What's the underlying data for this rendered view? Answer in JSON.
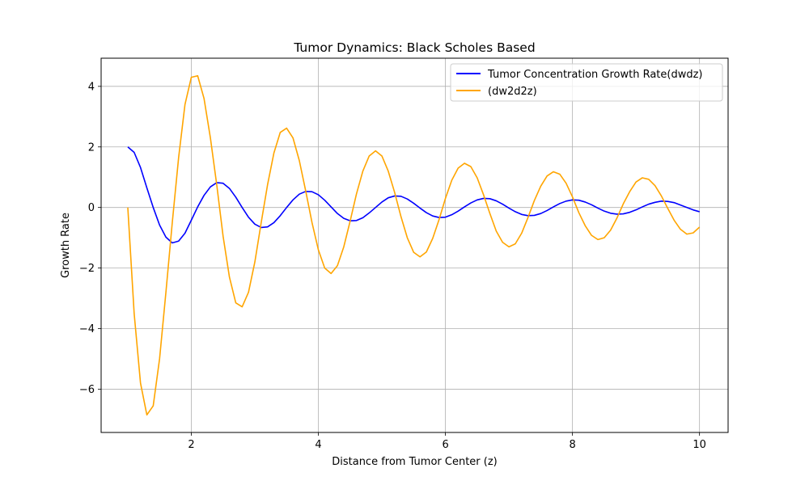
{
  "chart_data": {
    "type": "line",
    "title": "Tumor Dynamics: Black Scholes Based",
    "xlabel": "Distance from Tumor Center (z)",
    "ylabel": "Growth Rate",
    "xlim": [
      0.58,
      10.45
    ],
    "ylim": [
      -7.43,
      4.93
    ],
    "xticks": [
      2,
      4,
      6,
      8,
      10
    ],
    "xtick_labels": [
      "2",
      "4",
      "6",
      "8",
      "10"
    ],
    "yticks": [
      -6,
      -4,
      -2,
      0,
      2,
      4
    ],
    "ytick_labels": [
      "−6",
      "−4",
      "−2",
      "0",
      "2",
      "4"
    ],
    "grid": true,
    "legend_position": "top-right",
    "series": [
      {
        "name": "Tumor Concentration Growth Rate(dwdz)",
        "color": "#0000ff",
        "points": [
          [
            1.0,
            2.0
          ],
          [
            1.1,
            1.82
          ],
          [
            1.2,
            1.32
          ],
          [
            1.3,
            0.65
          ],
          [
            1.4,
            0.0
          ],
          [
            1.5,
            -0.58
          ],
          [
            1.6,
            -0.98
          ],
          [
            1.7,
            -1.17
          ],
          [
            1.8,
            -1.11
          ],
          [
            1.9,
            -0.85
          ],
          [
            2.0,
            -0.42
          ],
          [
            2.1,
            0.02
          ],
          [
            2.2,
            0.4
          ],
          [
            2.3,
            0.68
          ],
          [
            2.4,
            0.82
          ],
          [
            2.5,
            0.8
          ],
          [
            2.6,
            0.63
          ],
          [
            2.7,
            0.34
          ],
          [
            2.8,
            0.0
          ],
          [
            2.9,
            -0.32
          ],
          [
            3.0,
            -0.55
          ],
          [
            3.1,
            -0.66
          ],
          [
            3.2,
            -0.64
          ],
          [
            3.3,
            -0.5
          ],
          [
            3.4,
            -0.27
          ],
          [
            3.5,
            0.0
          ],
          [
            3.6,
            0.25
          ],
          [
            3.7,
            0.44
          ],
          [
            3.8,
            0.53
          ],
          [
            3.9,
            0.52
          ],
          [
            4.0,
            0.42
          ],
          [
            4.1,
            0.24
          ],
          [
            4.2,
            0.02
          ],
          [
            4.3,
            -0.2
          ],
          [
            4.4,
            -0.36
          ],
          [
            4.5,
            -0.44
          ],
          [
            4.6,
            -0.43
          ],
          [
            4.7,
            -0.34
          ],
          [
            4.8,
            -0.18
          ],
          [
            4.9,
            0.0
          ],
          [
            5.0,
            0.18
          ],
          [
            5.1,
            0.32
          ],
          [
            5.2,
            0.38
          ],
          [
            5.3,
            0.37
          ],
          [
            5.4,
            0.28
          ],
          [
            5.5,
            0.14
          ],
          [
            5.6,
            -0.02
          ],
          [
            5.7,
            -0.17
          ],
          [
            5.8,
            -0.28
          ],
          [
            5.9,
            -0.33
          ],
          [
            6.0,
            -0.32
          ],
          [
            6.1,
            -0.24
          ],
          [
            6.2,
            -0.12
          ],
          [
            6.3,
            0.02
          ],
          [
            6.4,
            0.15
          ],
          [
            6.5,
            0.25
          ],
          [
            6.6,
            0.3
          ],
          [
            6.7,
            0.29
          ],
          [
            6.8,
            0.22
          ],
          [
            6.9,
            0.11
          ],
          [
            7.0,
            -0.02
          ],
          [
            7.1,
            -0.14
          ],
          [
            7.2,
            -0.23
          ],
          [
            7.3,
            -0.27
          ],
          [
            7.4,
            -0.26
          ],
          [
            7.5,
            -0.2
          ],
          [
            7.6,
            -0.1
          ],
          [
            7.7,
            0.02
          ],
          [
            7.8,
            0.13
          ],
          [
            7.9,
            0.21
          ],
          [
            8.0,
            0.25
          ],
          [
            8.1,
            0.24
          ],
          [
            8.2,
            0.18
          ],
          [
            8.3,
            0.09
          ],
          [
            8.4,
            -0.02
          ],
          [
            8.5,
            -0.12
          ],
          [
            8.6,
            -0.19
          ],
          [
            8.7,
            -0.22
          ],
          [
            8.8,
            -0.21
          ],
          [
            8.9,
            -0.16
          ],
          [
            9.0,
            -0.08
          ],
          [
            9.1,
            0.02
          ],
          [
            9.2,
            0.11
          ],
          [
            9.3,
            0.17
          ],
          [
            9.4,
            0.21
          ],
          [
            9.5,
            0.2
          ],
          [
            9.6,
            0.16
          ],
          [
            9.7,
            0.08
          ],
          [
            9.8,
            0.0
          ],
          [
            9.9,
            -0.08
          ],
          [
            10.0,
            -0.14
          ]
        ]
      },
      {
        "name": "(dw2d2z)",
        "color": "#ffa500",
        "points": [
          [
            1.0,
            0.0
          ],
          [
            1.1,
            -3.5
          ],
          [
            1.2,
            -5.8
          ],
          [
            1.3,
            -6.85
          ],
          [
            1.4,
            -6.55
          ],
          [
            1.5,
            -5.0
          ],
          [
            1.6,
            -2.8
          ],
          [
            1.7,
            -0.5
          ],
          [
            1.8,
            1.65
          ],
          [
            1.9,
            3.4
          ],
          [
            2.0,
            4.3
          ],
          [
            2.1,
            4.35
          ],
          [
            2.2,
            3.6
          ],
          [
            2.3,
            2.3
          ],
          [
            2.4,
            0.75
          ],
          [
            2.5,
            -0.95
          ],
          [
            2.6,
            -2.3
          ],
          [
            2.7,
            -3.15
          ],
          [
            2.8,
            -3.28
          ],
          [
            2.9,
            -2.8
          ],
          [
            3.0,
            -1.8
          ],
          [
            3.1,
            -0.5
          ],
          [
            3.2,
            0.75
          ],
          [
            3.3,
            1.8
          ],
          [
            3.4,
            2.48
          ],
          [
            3.5,
            2.62
          ],
          [
            3.6,
            2.3
          ],
          [
            3.7,
            1.55
          ],
          [
            3.8,
            0.55
          ],
          [
            3.9,
            -0.5
          ],
          [
            4.0,
            -1.4
          ],
          [
            4.1,
            -2.0
          ],
          [
            4.2,
            -2.18
          ],
          [
            4.3,
            -1.92
          ],
          [
            4.4,
            -1.3
          ],
          [
            4.5,
            -0.45
          ],
          [
            4.6,
            0.45
          ],
          [
            4.7,
            1.2
          ],
          [
            4.8,
            1.7
          ],
          [
            4.9,
            1.87
          ],
          [
            5.0,
            1.7
          ],
          [
            5.1,
            1.2
          ],
          [
            5.2,
            0.5
          ],
          [
            5.3,
            -0.3
          ],
          [
            5.4,
            -1.0
          ],
          [
            5.5,
            -1.48
          ],
          [
            5.6,
            -1.63
          ],
          [
            5.7,
            -1.47
          ],
          [
            5.8,
            -1.02
          ],
          [
            5.9,
            -0.4
          ],
          [
            6.0,
            0.3
          ],
          [
            6.1,
            0.9
          ],
          [
            6.2,
            1.3
          ],
          [
            6.3,
            1.46
          ],
          [
            6.4,
            1.35
          ],
          [
            6.5,
            0.98
          ],
          [
            6.6,
            0.42
          ],
          [
            6.7,
            -0.2
          ],
          [
            6.8,
            -0.78
          ],
          [
            6.9,
            -1.15
          ],
          [
            7.0,
            -1.3
          ],
          [
            7.1,
            -1.2
          ],
          [
            7.2,
            -0.85
          ],
          [
            7.3,
            -0.33
          ],
          [
            7.4,
            0.23
          ],
          [
            7.5,
            0.7
          ],
          [
            7.6,
            1.04
          ],
          [
            7.7,
            1.18
          ],
          [
            7.8,
            1.1
          ],
          [
            7.9,
            0.8
          ],
          [
            8.0,
            0.35
          ],
          [
            8.1,
            -0.17
          ],
          [
            8.2,
            -0.6
          ],
          [
            8.3,
            -0.92
          ],
          [
            8.4,
            -1.06
          ],
          [
            8.5,
            -1.0
          ],
          [
            8.6,
            -0.75
          ],
          [
            8.7,
            -0.35
          ],
          [
            8.8,
            0.12
          ],
          [
            8.9,
            0.52
          ],
          [
            9.0,
            0.84
          ],
          [
            9.1,
            0.98
          ],
          [
            9.2,
            0.93
          ],
          [
            9.3,
            0.72
          ],
          [
            9.4,
            0.38
          ],
          [
            9.5,
            -0.03
          ],
          [
            9.6,
            -0.42
          ],
          [
            9.7,
            -0.72
          ],
          [
            9.8,
            -0.88
          ],
          [
            9.9,
            -0.84
          ],
          [
            10.0,
            -0.65
          ]
        ]
      }
    ]
  }
}
